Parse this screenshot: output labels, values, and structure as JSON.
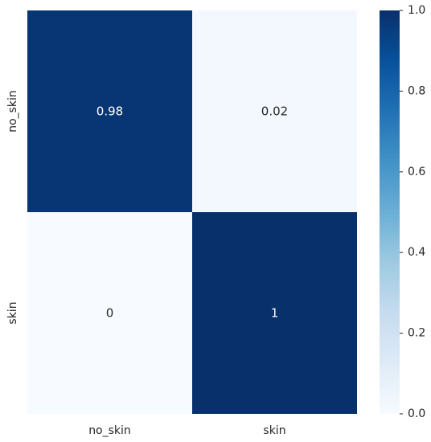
{
  "chart_data": {
    "type": "heatmap",
    "title": "",
    "xlabel": "",
    "ylabel": "",
    "x_categories": [
      "no_skin",
      "skin"
    ],
    "y_categories": [
      "no_skin",
      "skin"
    ],
    "values": [
      [
        0.98,
        0.02
      ],
      [
        0,
        1
      ]
    ],
    "cell_labels": [
      [
        "0.98",
        "0.02"
      ],
      [
        "0",
        "1"
      ]
    ],
    "colormap": "Blues",
    "colorbar": {
      "range": [
        0.0,
        1.0
      ],
      "ticks": [
        0.0,
        0.2,
        0.4,
        0.6,
        0.8,
        1.0
      ],
      "tick_labels": [
        "0.0",
        "0.2",
        "0.4",
        "0.6",
        "0.8",
        "1.0"
      ],
      "placement": "right"
    },
    "grid": false
  }
}
